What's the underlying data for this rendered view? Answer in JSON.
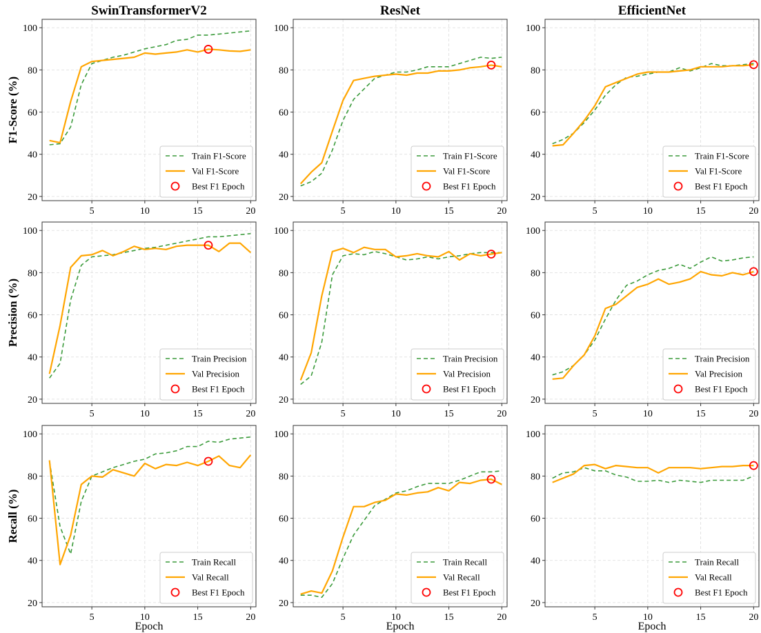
{
  "chart_data": {
    "type": "line",
    "x_label": "Epoch",
    "columns": [
      "SwinTransformerV2",
      "ResNet",
      "EfficientNet"
    ],
    "rows": [
      "F1-Score (%)",
      "Precision (%)",
      "Recall (%)"
    ],
    "xlim": [
      0.3,
      20.5
    ],
    "ylim": [
      18,
      104
    ],
    "x_ticks": [
      5,
      10,
      15,
      20
    ],
    "y_ticks": [
      20,
      40,
      60,
      80,
      100
    ],
    "grid": true,
    "legend_position": "bottom-right",
    "colors": {
      "train": "#3a9a3a",
      "val": "#ffa500",
      "best": "#ff0000"
    },
    "panels": [
      {
        "model": "SwinTransformerV2",
        "metric": "F1-Score",
        "series": [
          {
            "name": "Train F1-Score",
            "style": "dashed",
            "x": [
              1,
              2,
              3,
              4,
              5,
              6,
              7,
              8,
              9,
              10,
              11,
              12,
              13,
              14,
              15,
              16,
              17,
              18,
              19,
              20
            ],
            "y": [
              44.5,
              45,
              53,
              73,
              83,
              84.5,
              86,
              87,
              88.5,
              90,
              91,
              92,
              94,
              94.5,
              96.5,
              96.5,
              97,
              97.5,
              98,
              98.5
            ]
          },
          {
            "name": "Val F1-Score",
            "style": "solid",
            "x": [
              1,
              2,
              3,
              4,
              5,
              6,
              7,
              8,
              9,
              10,
              11,
              12,
              13,
              14,
              15,
              16,
              17,
              18,
              19,
              20
            ],
            "y": [
              46.5,
              45.5,
              65,
              81.5,
              84,
              84.5,
              85,
              85.5,
              86,
              88,
              87.5,
              88,
              88.5,
              89.5,
              88.5,
              89.8,
              89.5,
              89,
              88.8,
              89.5
            ]
          }
        ],
        "best": {
          "name": "Best F1 Epoch",
          "x": 16,
          "y": 89.8
        }
      },
      {
        "model": "ResNet",
        "metric": "F1-Score",
        "series": [
          {
            "name": "Train F1-Score",
            "style": "dashed",
            "x": [
              1,
              2,
              3,
              4,
              5,
              6,
              7,
              8,
              9,
              10,
              11,
              12,
              13,
              14,
              15,
              16,
              17,
              18,
              19,
              20
            ],
            "y": [
              25,
              27,
              31,
              42,
              56,
              66,
              71,
              76,
              77.5,
              79,
              79,
              80,
              81.5,
              81.5,
              81.5,
              83,
              84.5,
              86,
              85.5,
              86
            ]
          },
          {
            "name": "Val F1-Score",
            "style": "solid",
            "x": [
              1,
              2,
              3,
              4,
              5,
              6,
              7,
              8,
              9,
              10,
              11,
              12,
              13,
              14,
              15,
              16,
              17,
              18,
              19,
              20
            ],
            "y": [
              26,
              31.5,
              36,
              51,
              65.5,
              75,
              76,
              77,
              77.5,
              78,
              77.5,
              78.5,
              78.5,
              79.5,
              79.5,
              80,
              81,
              81.5,
              82.3,
              81.5
            ]
          }
        ],
        "best": {
          "name": "Best F1 Epoch",
          "x": 19,
          "y": 82.3
        }
      },
      {
        "model": "EfficientNet",
        "metric": "F1-Score",
        "series": [
          {
            "name": "Train F1-Score",
            "style": "dashed",
            "x": [
              1,
              2,
              3,
              4,
              5,
              6,
              7,
              8,
              9,
              10,
              11,
              12,
              13,
              14,
              15,
              16,
              17,
              18,
              19,
              20
            ],
            "y": [
              45,
              47,
              50,
              55,
              61,
              68,
              73,
              76.5,
              77,
              78,
              79,
              79,
              81,
              79.5,
              81,
              83,
              82,
              82,
              82.5,
              83
            ]
          },
          {
            "name": "Val F1-Score",
            "style": "solid",
            "x": [
              1,
              2,
              3,
              4,
              5,
              6,
              7,
              8,
              9,
              10,
              11,
              12,
              13,
              14,
              15,
              16,
              17,
              18,
              19,
              20
            ],
            "y": [
              44,
              44.5,
              50,
              56,
              63,
              72,
              74,
              76,
              78,
              79,
              79,
              79,
              79.5,
              80,
              81.5,
              81.5,
              81.5,
              82,
              82,
              82.5
            ]
          }
        ],
        "best": {
          "name": "Best F1 Epoch",
          "x": 20,
          "y": 82.5
        }
      },
      {
        "model": "SwinTransformerV2",
        "metric": "Precision",
        "series": [
          {
            "name": "Train Precision",
            "style": "dashed",
            "x": [
              1,
              2,
              3,
              4,
              5,
              6,
              7,
              8,
              9,
              10,
              11,
              12,
              13,
              14,
              15,
              16,
              17,
              18,
              19,
              20
            ],
            "y": [
              30,
              37,
              67,
              83.5,
              87.5,
              88,
              88.5,
              89.5,
              90.5,
              91.5,
              92,
              93,
              94,
              95,
              96,
              97,
              97,
              97.5,
              98,
              98.5
            ]
          },
          {
            "name": "Val Precision",
            "style": "solid",
            "x": [
              1,
              2,
              3,
              4,
              5,
              6,
              7,
              8,
              9,
              10,
              11,
              12,
              13,
              14,
              15,
              16,
              17,
              18,
              19,
              20
            ],
            "y": [
              32,
              55,
              82.5,
              88,
              88.5,
              90.5,
              88,
              90,
              92.5,
              91,
              91.5,
              91,
              92.5,
              93,
              93,
              93,
              90,
              94,
              94,
              89.5
            ]
          }
        ],
        "best": {
          "name": "Best F1 Epoch",
          "x": 16,
          "y": 93
        }
      },
      {
        "model": "ResNet",
        "metric": "Precision",
        "series": [
          {
            "name": "Train Precision",
            "style": "dashed",
            "x": [
              1,
              2,
              3,
              4,
              5,
              6,
              7,
              8,
              9,
              10,
              11,
              12,
              13,
              14,
              15,
              16,
              17,
              18,
              19,
              20
            ],
            "y": [
              27,
              31,
              47,
              79,
              88,
              89,
              88.5,
              90,
              89,
              87.5,
              86,
              86.5,
              87.5,
              86.5,
              87.5,
              88,
              89,
              89.5,
              89.5,
              89.5
            ]
          },
          {
            "name": "Val Precision",
            "style": "solid",
            "x": [
              1,
              2,
              3,
              4,
              5,
              6,
              7,
              8,
              9,
              10,
              11,
              12,
              13,
              14,
              15,
              16,
              17,
              18,
              19,
              20
            ],
            "y": [
              29,
              42,
              69,
              90,
              91.5,
              89.5,
              92,
              91,
              91,
              87.5,
              88,
              89,
              88,
              87.5,
              90,
              86,
              89,
              88,
              88.8,
              89.5
            ]
          }
        ],
        "best": {
          "name": "Best F1 Epoch",
          "x": 19,
          "y": 88.8
        }
      },
      {
        "model": "EfficientNet",
        "metric": "Precision",
        "series": [
          {
            "name": "Train Precision",
            "style": "dashed",
            "x": [
              1,
              2,
              3,
              4,
              5,
              6,
              7,
              8,
              9,
              10,
              11,
              12,
              13,
              14,
              15,
              16,
              17,
              18,
              19,
              20
            ],
            "y": [
              31.5,
              33,
              36,
              41,
              48,
              58,
              67,
              74,
              76,
              79,
              81,
              82,
              84,
              82,
              85,
              87.5,
              85.5,
              86,
              87,
              87.5
            ]
          },
          {
            "name": "Val Precision",
            "style": "solid",
            "x": [
              1,
              2,
              3,
              4,
              5,
              6,
              7,
              8,
              9,
              10,
              11,
              12,
              13,
              14,
              15,
              16,
              17,
              18,
              19,
              20
            ],
            "y": [
              29.5,
              30,
              36,
              41,
              50,
              63,
              65,
              69,
              73,
              74.5,
              77,
              74.5,
              75.5,
              77,
              80.5,
              79,
              78.5,
              80,
              79,
              80.5
            ]
          }
        ],
        "best": {
          "name": "Best F1 Epoch",
          "x": 20,
          "y": 80.5
        }
      },
      {
        "model": "SwinTransformerV2",
        "metric": "Recall",
        "series": [
          {
            "name": "Train Recall",
            "style": "dashed",
            "x": [
              1,
              2,
              3,
              4,
              5,
              6,
              7,
              8,
              9,
              10,
              11,
              12,
              13,
              14,
              15,
              16,
              17,
              18,
              19,
              20
            ],
            "y": [
              87,
              56,
              43,
              68,
              80,
              82,
              84,
              85.5,
              87,
              88,
              90.5,
              91,
              92,
              94,
              94,
              96.5,
              96,
              97.5,
              98,
              98.5
            ]
          },
          {
            "name": "Val Recall",
            "style": "solid",
            "x": [
              1,
              2,
              3,
              4,
              5,
              6,
              7,
              8,
              9,
              10,
              11,
              12,
              13,
              14,
              15,
              16,
              17,
              18,
              19,
              20
            ],
            "y": [
              87.5,
              38,
              52,
              76,
              80,
              79.5,
              83,
              81.5,
              80,
              86,
              83.5,
              85.5,
              85,
              86.5,
              85,
              87,
              89.5,
              85,
              84,
              90
            ]
          }
        ],
        "best": {
          "name": "Best F1 Epoch",
          "x": 16,
          "y": 87
        }
      },
      {
        "model": "ResNet",
        "metric": "Recall",
        "series": [
          {
            "name": "Train Recall",
            "style": "dashed",
            "x": [
              1,
              2,
              3,
              4,
              5,
              6,
              7,
              8,
              9,
              10,
              11,
              12,
              13,
              14,
              15,
              16,
              17,
              18,
              19,
              20
            ],
            "y": [
              23.5,
              23.5,
              22.5,
              29,
              41,
              52,
              59,
              66,
              69,
              72,
              73,
              75,
              76.5,
              76.5,
              76.5,
              78,
              80,
              82,
              82,
              82.5
            ]
          },
          {
            "name": "Val Recall",
            "style": "solid",
            "x": [
              1,
              2,
              3,
              4,
              5,
              6,
              7,
              8,
              9,
              10,
              11,
              12,
              13,
              14,
              15,
              16,
              17,
              18,
              19,
              20
            ],
            "y": [
              24,
              25.5,
              24.5,
              35,
              51,
              65.5,
              65.5,
              67.5,
              68.5,
              71.5,
              71,
              72,
              72.5,
              74.5,
              73,
              77,
              76.5,
              78,
              78.5,
              76
            ]
          }
        ],
        "best": {
          "name": "Best F1 Epoch",
          "x": 19,
          "y": 78.5
        }
      },
      {
        "model": "EfficientNet",
        "metric": "Recall",
        "series": [
          {
            "name": "Train Recall",
            "style": "dashed",
            "x": [
              1,
              2,
              3,
              4,
              5,
              6,
              7,
              8,
              9,
              10,
              11,
              12,
              13,
              14,
              15,
              16,
              17,
              18,
              19,
              20
            ],
            "y": [
              79,
              81.5,
              82,
              84,
              82.5,
              82.5,
              80.5,
              79.5,
              77.5,
              77.5,
              78,
              77,
              78,
              77.5,
              77,
              78,
              78,
              78,
              78,
              80
            ]
          },
          {
            "name": "Val Recall",
            "style": "solid",
            "x": [
              1,
              2,
              3,
              4,
              5,
              6,
              7,
              8,
              9,
              10,
              11,
              12,
              13,
              14,
              15,
              16,
              17,
              18,
              19,
              20
            ],
            "y": [
              77,
              79,
              81,
              85,
              85.5,
              83.5,
              85,
              84.5,
              84,
              84,
              81.5,
              84,
              84,
              84,
              83.5,
              84,
              84.5,
              84.5,
              85,
              85
            ]
          }
        ],
        "best": {
          "name": "Best F1 Epoch",
          "x": 20,
          "y": 85
        }
      }
    ]
  }
}
